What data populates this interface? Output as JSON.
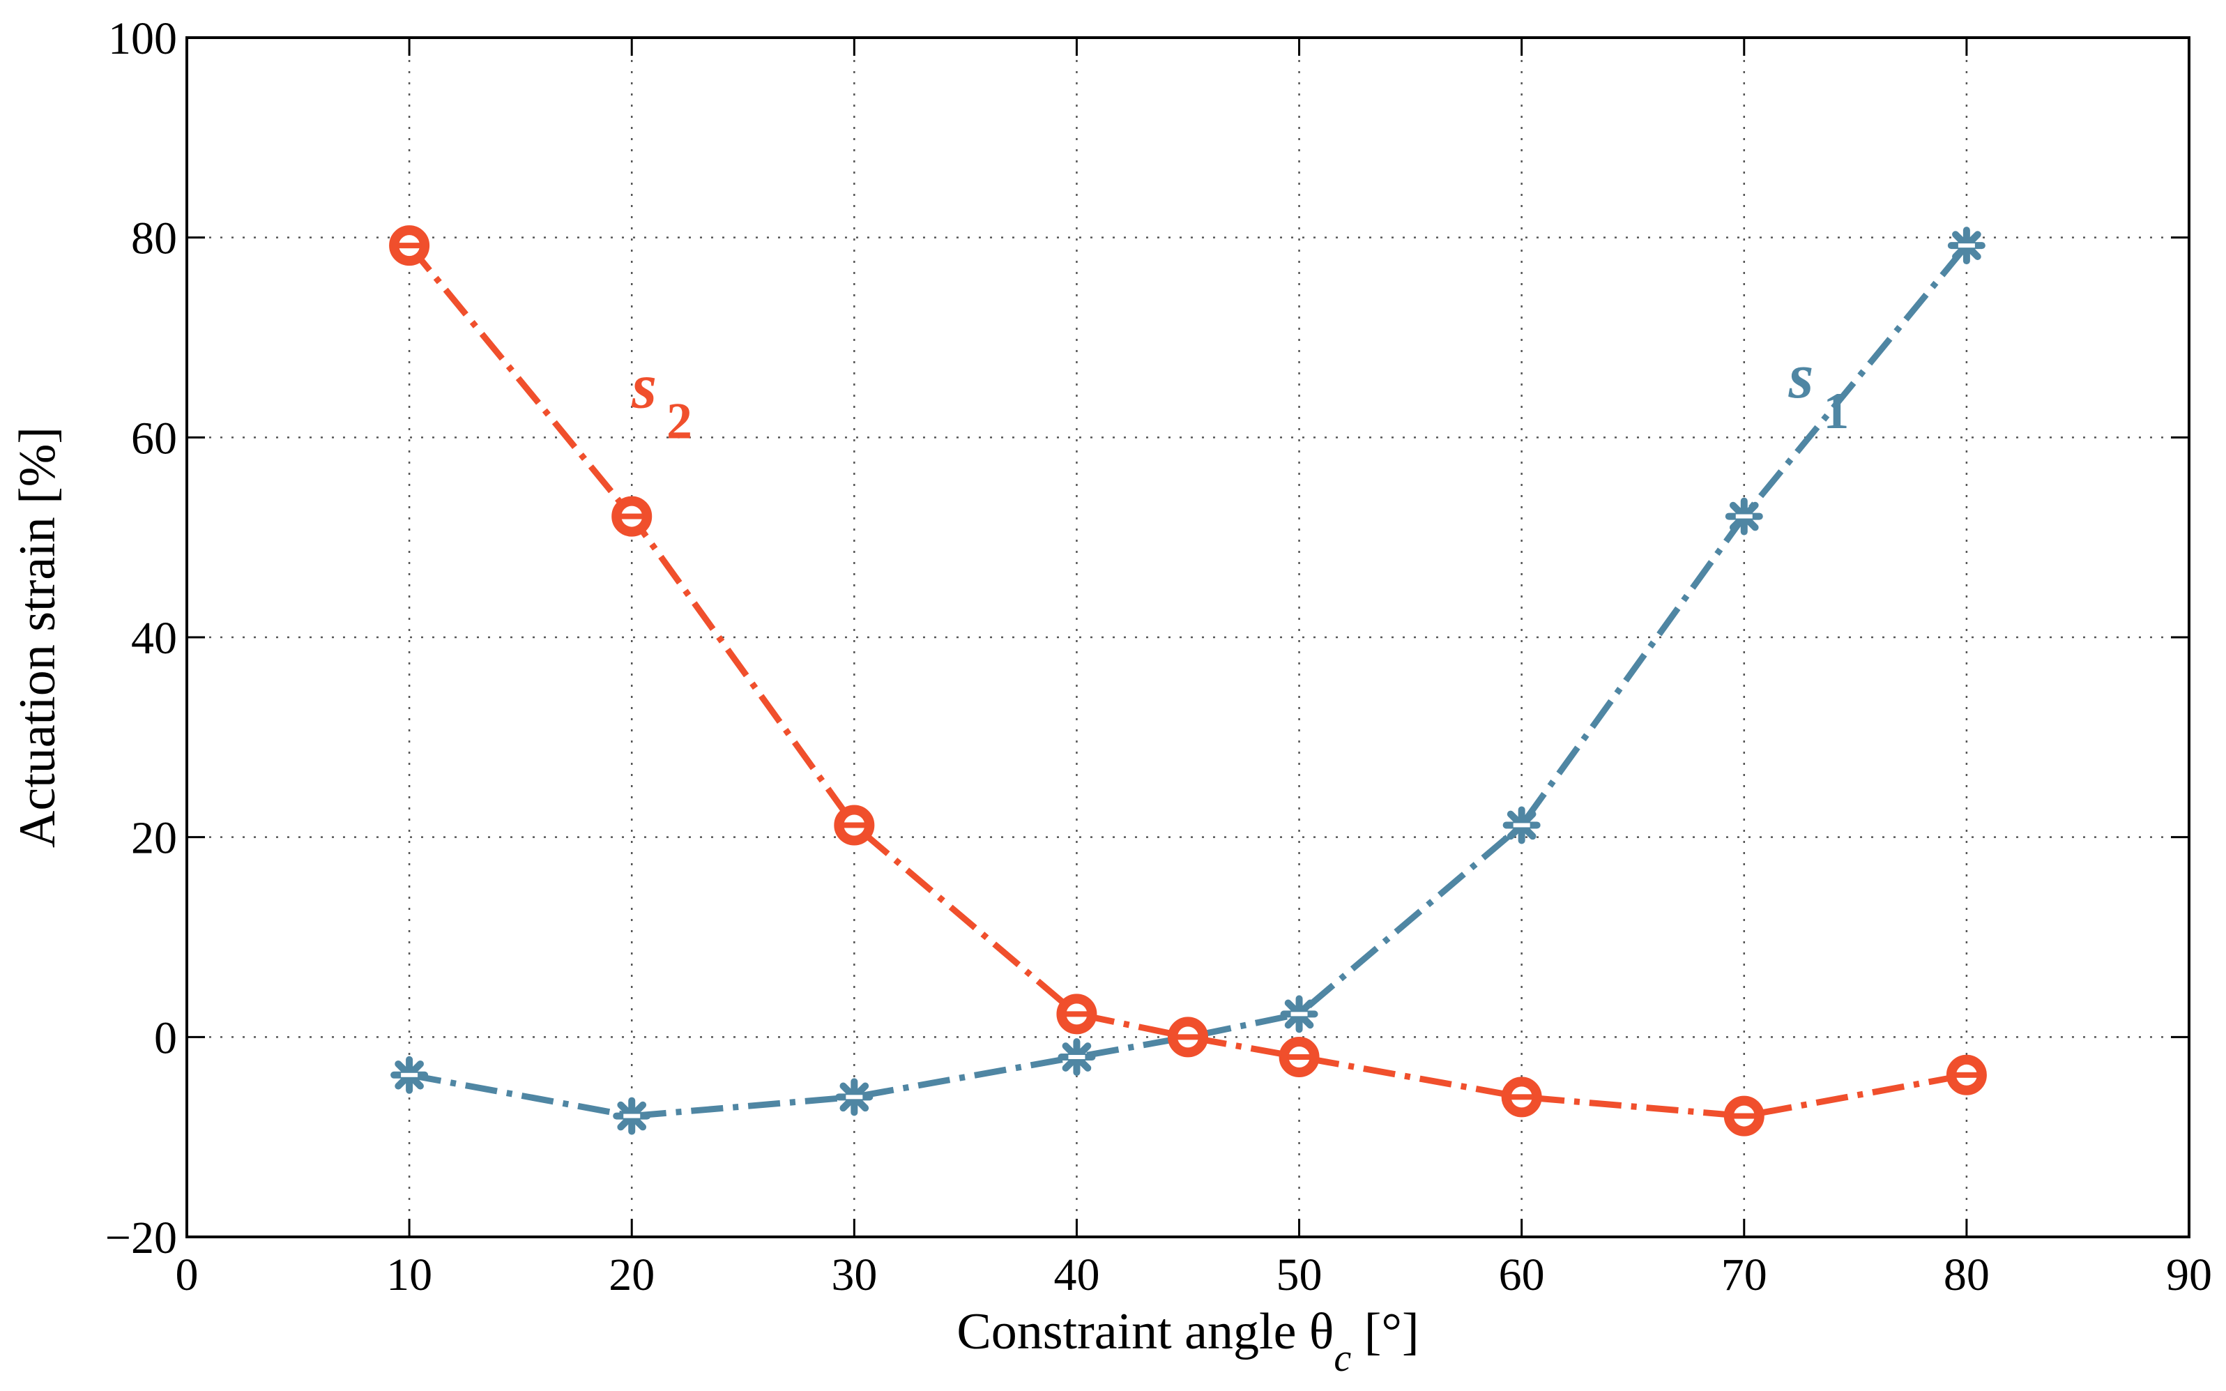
{
  "chart_data": {
    "type": "line",
    "title": "",
    "xlabel": {
      "main": "Constraint angle θ",
      "subscript": "c",
      "unit": " [°]"
    },
    "ylabel": "Actuation strain [%]",
    "xlim": [
      0,
      90
    ],
    "ylim": [
      -20,
      100
    ],
    "xticks": [
      0,
      10,
      20,
      30,
      40,
      50,
      60,
      70,
      80,
      90
    ],
    "yticks": [
      -20,
      0,
      20,
      40,
      60,
      80,
      100
    ],
    "xtick_labels": [
      "0",
      "10",
      "20",
      "30",
      "40",
      "50",
      "60",
      "70",
      "80",
      "90"
    ],
    "ytick_labels": [
      "−20",
      "0",
      "20",
      "40",
      "60",
      "80",
      "100"
    ],
    "grid": true,
    "x": [
      10,
      20,
      30,
      40,
      45,
      50,
      60,
      70,
      80
    ],
    "series": [
      {
        "name": "s1",
        "label_main": "s",
        "label_sub": "1",
        "color": "#4f86a3",
        "marker": "asterisk",
        "line_style": "dash-dot",
        "values": [
          -3.8,
          -7.9,
          -6.0,
          -2.0,
          0.0,
          2.3,
          21.2,
          52.1,
          79.2
        ],
        "label_anchor": [
          72,
          64
        ]
      },
      {
        "name": "s2",
        "label_main": "s",
        "label_sub": "2",
        "color": "#f04f2c",
        "marker": "circle",
        "line_style": "dash-dot",
        "values": [
          79.2,
          52.1,
          21.2,
          2.3,
          0.0,
          -2.0,
          -6.0,
          -7.9,
          -3.8
        ],
        "label_anchor": [
          20,
          63
        ]
      }
    ]
  }
}
